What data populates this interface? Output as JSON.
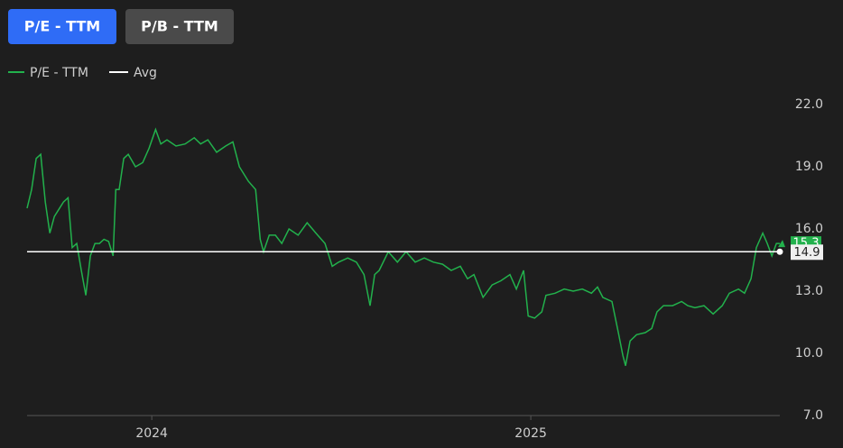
{
  "buttons": [
    "P/E - TTM",
    "P/B - TTM"
  ],
  "chart_data": {
    "type": "line",
    "series": [
      {
        "name": "P/E - TTM",
        "color": "#22b14c",
        "x": [
          2023.671,
          2023.683,
          2023.695,
          2023.707,
          2023.719,
          2023.731,
          2023.743,
          2023.767,
          2023.779,
          2023.79,
          2023.802,
          2023.814,
          2023.826,
          2023.838,
          2023.85,
          2023.862,
          2023.874,
          2023.886,
          2023.898,
          2023.905,
          2023.914,
          2023.926,
          2023.938,
          2023.957,
          2023.976,
          2023.993,
          2024.01,
          2024.024,
          2024.04,
          2024.064,
          2024.088,
          2024.112,
          2024.129,
          2024.148,
          2024.171,
          2024.195,
          2024.214,
          2024.231,
          2024.255,
          2024.274,
          2024.286,
          2024.295,
          2024.31,
          2024.326,
          2024.343,
          2024.362,
          2024.386,
          2024.41,
          2024.433,
          2024.457,
          2024.476,
          2024.493,
          2024.517,
          2024.54,
          2024.56,
          2024.576,
          2024.588,
          2024.6,
          2024.624,
          2024.648,
          2024.671,
          2024.695,
          2024.719,
          2024.743,
          2024.767,
          2024.79,
          2024.814,
          2024.833,
          2024.85,
          2024.874,
          2024.898,
          2024.921,
          2024.945,
          2024.962,
          2024.981,
          2024.993,
          2025.01,
          2025.029,
          2025.04,
          2025.064,
          2025.088,
          2025.112,
          2025.136,
          2025.16,
          2025.176,
          2025.19,
          2025.214,
          2025.231,
          2025.243,
          2025.25,
          2025.262,
          2025.279,
          2025.302,
          2025.319,
          2025.333,
          2025.35,
          2025.374,
          2025.398,
          2025.414,
          2025.433,
          2025.457,
          2025.481,
          2025.505,
          2025.524,
          2025.548,
          2025.564,
          2025.581,
          2025.595,
          2025.612,
          2025.624,
          2025.636,
          2025.648,
          2025.657
        ],
        "values": [
          17.0,
          17.9,
          19.4,
          19.6,
          17.3,
          15.8,
          16.6,
          17.3,
          17.5,
          15.1,
          15.3,
          14.0,
          12.8,
          14.7,
          15.3,
          15.3,
          15.5,
          15.4,
          14.7,
          17.9,
          17.9,
          19.4,
          19.6,
          19.0,
          19.2,
          19.9,
          20.8,
          20.1,
          20.3,
          20.0,
          20.1,
          20.4,
          20.1,
          20.3,
          19.7,
          20.0,
          20.2,
          19.0,
          18.3,
          17.9,
          15.5,
          14.9,
          15.7,
          15.7,
          15.3,
          16.0,
          15.7,
          16.3,
          15.8,
          15.3,
          14.2,
          14.4,
          14.6,
          14.4,
          13.8,
          12.3,
          13.8,
          14.0,
          14.9,
          14.4,
          14.9,
          14.4,
          14.6,
          14.4,
          14.3,
          14.0,
          14.2,
          13.6,
          13.8,
          12.7,
          13.3,
          13.5,
          13.8,
          13.1,
          14.0,
          11.8,
          11.7,
          12.0,
          12.8,
          12.9,
          13.1,
          13.0,
          13.1,
          12.9,
          13.2,
          12.7,
          12.5,
          11.0,
          9.9,
          9.4,
          10.6,
          10.9,
          11.0,
          11.2,
          12.0,
          12.3,
          12.3,
          12.5,
          12.3,
          12.2,
          12.3,
          11.9,
          12.3,
          12.9,
          13.1,
          12.9,
          13.6,
          15.1,
          15.8,
          15.3,
          14.7,
          15.3,
          15.3
        ]
      }
    ],
    "avg": {
      "name": "Avg",
      "value": 14.9,
      "color": "#ffffff"
    },
    "xlim": [
      2023.671,
      2025.657
    ],
    "xticks": [
      2024,
      2025
    ],
    "ylim": [
      7,
      22
    ],
    "yticks": [
      {
        "value": 22,
        "label": "22.0"
      },
      {
        "value": 19,
        "label": "19.0"
      },
      {
        "value": 16,
        "label": "16.0"
      },
      {
        "value": 13,
        "label": "13.0"
      },
      {
        "value": 10,
        "label": "10.0"
      },
      {
        "value": 7,
        "label": "7.0"
      }
    ]
  }
}
